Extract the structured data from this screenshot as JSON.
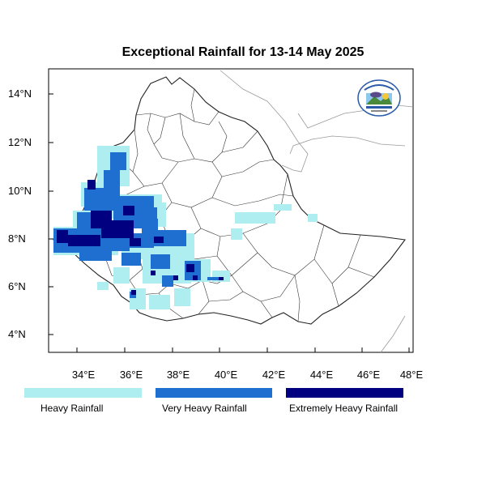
{
  "title": "Exceptional Rainfall for 13-14 May 2025",
  "axes": {
    "x_ticks": [
      "34°E",
      "36°E",
      "38°E",
      "40°E",
      "42°E",
      "44°E",
      "46°E",
      "48°E"
    ],
    "y_ticks": [
      "14°N",
      "12°N",
      "10°N",
      "8°N",
      "6°N",
      "4°N"
    ],
    "lon_range": [
      32.9,
      48.1
    ],
    "lat_range": [
      3.3,
      14.9
    ]
  },
  "legend": [
    {
      "label": "Heavy Rainfall",
      "color": "#aeeef0"
    },
    {
      "label": "Very Heavy Rainfall",
      "color": "#1e6fd0"
    },
    {
      "label": "Extremely Heavy Rainfall",
      "color": "#000080"
    }
  ],
  "colors": {
    "heavy": "#aeeef0",
    "very_heavy": "#1e6fd0",
    "extreme": "#000080"
  },
  "logo_icon": "meteorology-institute-logo-icon"
}
